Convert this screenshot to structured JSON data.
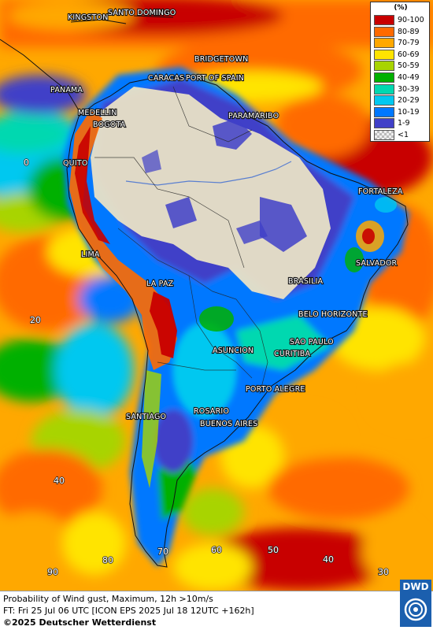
{
  "legend": {
    "unit": "(%)",
    "items": [
      {
        "label": "90-100",
        "color": "#c80000"
      },
      {
        "label": "80-89",
        "color": "#ff6a00"
      },
      {
        "label": "70-79",
        "color": "#ffa800"
      },
      {
        "label": "60-69",
        "color": "#ffe400"
      },
      {
        "label": "50-59",
        "color": "#a8d400"
      },
      {
        "label": "40-49",
        "color": "#00b000"
      },
      {
        "label": "30-39",
        "color": "#00d8b0"
      },
      {
        "label": "20-29",
        "color": "#00c8f0"
      },
      {
        "label": "10-19",
        "color": "#0078ff"
      },
      {
        "label": "1-9",
        "color": "#4040c8"
      },
      {
        "label": "<1",
        "color": "#cfcfcf"
      }
    ]
  },
  "cities": {
    "kingston": "KINGSTON",
    "santo_domingo": "SANTO DOMINGO",
    "bridgetown": "BRIDGETOWN",
    "caracas": "CARACAS",
    "port_of_spain": "PORT OF SPAIN",
    "panama": "PANAMA",
    "medellin": "MEDELLIN",
    "bogota": "BOGOTA",
    "paramaribo": "PARAMARIBO",
    "quito": "QUITO",
    "fortaleza": "FORTALEZA",
    "lima": "LIMA",
    "salvador": "SALVADOR",
    "brasilia": "BRASILIA",
    "la_paz": "LA PAZ",
    "belo_horizonte": "BELO HORIZONTE",
    "sao_paulo": "SAO PAULO",
    "asuncion": "ASUNCION",
    "curitiba": "CURITIBA",
    "porto_alegre": "PORTO ALEGRE",
    "rosario": "ROSARIO",
    "buenos_aires": "BUENOS AIRES",
    "santiago": "SANTIAGO"
  },
  "coords": {
    "lat0": "0",
    "lat20": "20",
    "lat40": "40",
    "lon90": "90",
    "lon80": "80",
    "lon70": "70",
    "lon60": "60",
    "lon50": "50",
    "lon40": "40",
    "lon30": "30"
  },
  "footer": {
    "line1": "Probability of Wind gust, Maximum, 12h >10m/s",
    "line2": "FT: Fri 25 Jul 06 UTC [ICON EPS 2025 Jul 18 12UTC +162h]",
    "line3": "©2025 Deutscher Wetterdienst"
  },
  "logo": {
    "text": "DWD"
  }
}
